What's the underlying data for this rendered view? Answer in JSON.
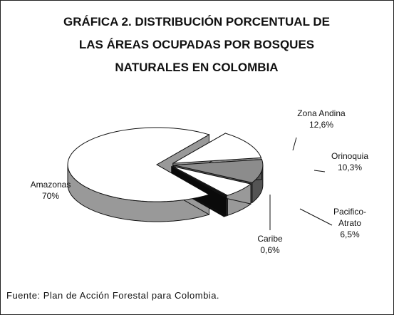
{
  "chart_data": {
    "type": "pie3d",
    "title": "GRÁFICA 2. DISTRIBUCIÓN PORCENTUAL DE LAS ÁREAS OCUPADAS POR BOSQUES NATURALES EN COLOMBIA",
    "categories": [
      "Amazonas",
      "Zona Andina",
      "Orinoquia",
      "Pacifico-Atrato",
      "Caribe"
    ],
    "values": [
      70,
      12.6,
      10.3,
      6.5,
      0.6
    ],
    "value_labels": [
      "70%",
      "12,6%",
      "10,3%",
      "6,5%",
      "0,6%"
    ],
    "colors": [
      "#ffffff",
      "#ffffff",
      "#8c8c8c",
      "#ffffff",
      "#111111"
    ],
    "source": "Fuente: Plan de Acción Forestal para Colombia."
  }
}
